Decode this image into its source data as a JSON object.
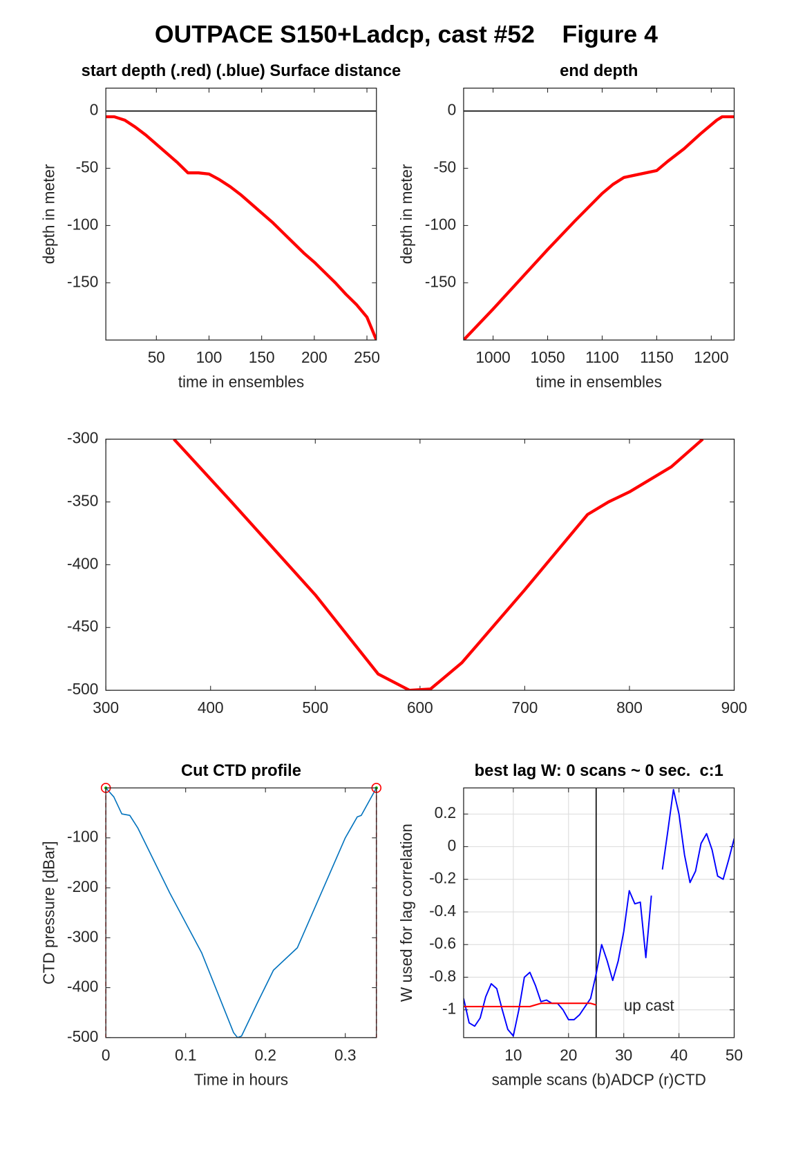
{
  "figure_title": "OUTPACE S150+Ladcp, cast #52    Figure 4",
  "chart_data": [
    {
      "type": "line",
      "title": "start depth (.red) (.blue) Surface distance",
      "xlabel": "time in ensembles",
      "ylabel": "depth in meter",
      "xlim": [
        2,
        259
      ],
      "ylim": [
        -200,
        20
      ],
      "xticks": [
        50,
        100,
        150,
        200,
        250
      ],
      "yticks": [
        -150,
        -100,
        -50,
        0
      ],
      "hlines": [
        0
      ],
      "grid": false,
      "series": [
        {
          "color": "#ff0000",
          "width": 4,
          "x": [
            2,
            10,
            20,
            30,
            40,
            50,
            60,
            70,
            80,
            90,
            100,
            110,
            120,
            130,
            140,
            150,
            160,
            170,
            180,
            190,
            200,
            210,
            220,
            230,
            240,
            250,
            259
          ],
          "values": [
            -5,
            -5,
            -8,
            -14,
            -21,
            -29,
            -37,
            -45,
            -54,
            -54,
            -55,
            -60,
            -66,
            -73,
            -81,
            -89,
            -97,
            -106,
            -115,
            -124,
            -132,
            -141,
            -150,
            -160,
            -169,
            -180,
            -200
          ]
        }
      ]
    },
    {
      "type": "line",
      "title": "end depth",
      "xlabel": "time in ensembles",
      "ylabel": "depth in meter",
      "xlim": [
        973,
        1221
      ],
      "ylim": [
        -200,
        20
      ],
      "xticks": [
        1000,
        1050,
        1100,
        1150,
        1200
      ],
      "yticks": [
        -150,
        -100,
        -50,
        0
      ],
      "hlines": [
        0
      ],
      "grid": false,
      "series": [
        {
          "color": "#ff0000",
          "width": 4,
          "x": [
            973,
            1000,
            1025,
            1050,
            1075,
            1100,
            1110,
            1120,
            1130,
            1150,
            1160,
            1175,
            1190,
            1205,
            1210,
            1221
          ],
          "values": [
            -200,
            -173,
            -147,
            -121,
            -96,
            -72,
            -64,
            -58,
            -56,
            -52,
            -44,
            -33,
            -20,
            -8,
            -5,
            -5
          ]
        }
      ]
    },
    {
      "type": "line",
      "xlim": [
        300,
        900
      ],
      "ylim": [
        -500,
        -300
      ],
      "xticks": [
        300,
        400,
        500,
        600,
        700,
        800,
        900
      ],
      "yticks": [
        -500,
        -450,
        -400,
        -350,
        -300
      ],
      "grid": false,
      "series": [
        {
          "color": "#ff0000",
          "width": 4,
          "x": [
            365,
            420,
            500,
            560,
            590,
            610,
            640,
            700,
            760,
            780,
            800,
            840,
            870
          ],
          "values": [
            -300,
            -350,
            -424,
            -487,
            -500,
            -499,
            -478,
            -420,
            -360,
            -350,
            -342,
            -322,
            -300
          ]
        }
      ]
    },
    {
      "type": "line",
      "title": "Cut CTD profile",
      "xlabel": "Time in hours",
      "ylabel": "CTD pressure [dBar]",
      "xlim": [
        0,
        0.339
      ],
      "ylim": [
        -500,
        0
      ],
      "xticks": [
        0,
        0.1,
        0.2,
        0.3
      ],
      "yticks": [
        -500,
        -400,
        -300,
        -200,
        -100
      ],
      "grid": false,
      "series": [
        {
          "color": "#0072bd",
          "width": 1.5,
          "x": [
            0,
            0.01,
            0.02,
            0.03,
            0.04,
            0.08,
            0.12,
            0.16,
            0.165,
            0.17,
            0.19,
            0.21,
            0.24,
            0.27,
            0.3,
            0.315,
            0.32,
            0.339
          ],
          "values": [
            0,
            -18,
            -52,
            -55,
            -80,
            -210,
            -330,
            -490,
            -500,
            -497,
            -430,
            -365,
            -320,
            -210,
            -100,
            -58,
            -55,
            0
          ]
        },
        {
          "color": "#ff0000",
          "mode": "markers",
          "x": [
            0,
            0.339
          ],
          "values": [
            0,
            0
          ]
        }
      ]
    },
    {
      "type": "line",
      "title": "best lag W: 0 scans ~ 0 sec.  c:1",
      "xlabel": "sample scans (b)ADCP (r)CTD",
      "ylabel": "W used for lag correlation",
      "xlim": [
        1,
        50
      ],
      "ylim": [
        -1.17,
        0.36
      ],
      "xticks": [
        10,
        20,
        30,
        40,
        50
      ],
      "yticks": [
        -1,
        -0.8,
        -0.6,
        -0.4,
        -0.2,
        0,
        0.2
      ],
      "vlines": [
        25
      ],
      "grid": true,
      "annotations": [
        {
          "text": "up cast",
          "x": 30,
          "y": -0.98
        }
      ],
      "series": [
        {
          "color": "#0000ff",
          "width": 1.8,
          "x": [
            1,
            2,
            3,
            4,
            5,
            6,
            7,
            8,
            9,
            10,
            11,
            12,
            13,
            14,
            15,
            16,
            17,
            18,
            19,
            20,
            21,
            22,
            23,
            24,
            25,
            26,
            27,
            28,
            29,
            30,
            31,
            32,
            33,
            34,
            35,
            36,
            37,
            38,
            39,
            40,
            41,
            42,
            43,
            44,
            45,
            46,
            47,
            48,
            49,
            50
          ],
          "values": [
            -0.93,
            -1.08,
            -1.1,
            -1.05,
            -0.92,
            -0.84,
            -0.87,
            -1.0,
            -1.12,
            -1.16,
            -1.0,
            -0.8,
            -0.77,
            -0.85,
            -0.95,
            -0.94,
            -0.96,
            -0.96,
            -1.0,
            -1.06,
            -1.06,
            -1.03,
            -0.98,
            -0.93,
            -0.78,
            -0.6,
            -0.7,
            -0.82,
            -0.7,
            -0.52,
            -0.27,
            -0.35,
            -0.34,
            -0.68,
            -0.3,
            null,
            -0.14,
            0.1,
            0.35,
            0.2,
            -0.05,
            -0.22,
            -0.15,
            0.02,
            0.08,
            -0.02,
            -0.18,
            -0.2,
            -0.08,
            0.05
          ]
        },
        {
          "color": "#ff0000",
          "width": 2,
          "x": [
            1,
            2,
            3,
            4,
            5,
            6,
            7,
            8,
            9,
            10,
            11,
            12,
            13,
            14,
            15,
            16,
            17,
            18,
            19,
            20,
            21,
            22,
            23,
            24,
            25
          ],
          "values": [
            -0.98,
            -0.98,
            -0.98,
            -0.98,
            -0.98,
            -0.98,
            -0.98,
            -0.98,
            -0.98,
            -0.98,
            -0.98,
            -0.98,
            -0.98,
            -0.97,
            -0.96,
            -0.96,
            -0.96,
            -0.96,
            -0.96,
            -0.96,
            -0.96,
            -0.96,
            -0.96,
            -0.96,
            -0.97
          ]
        }
      ]
    }
  ]
}
